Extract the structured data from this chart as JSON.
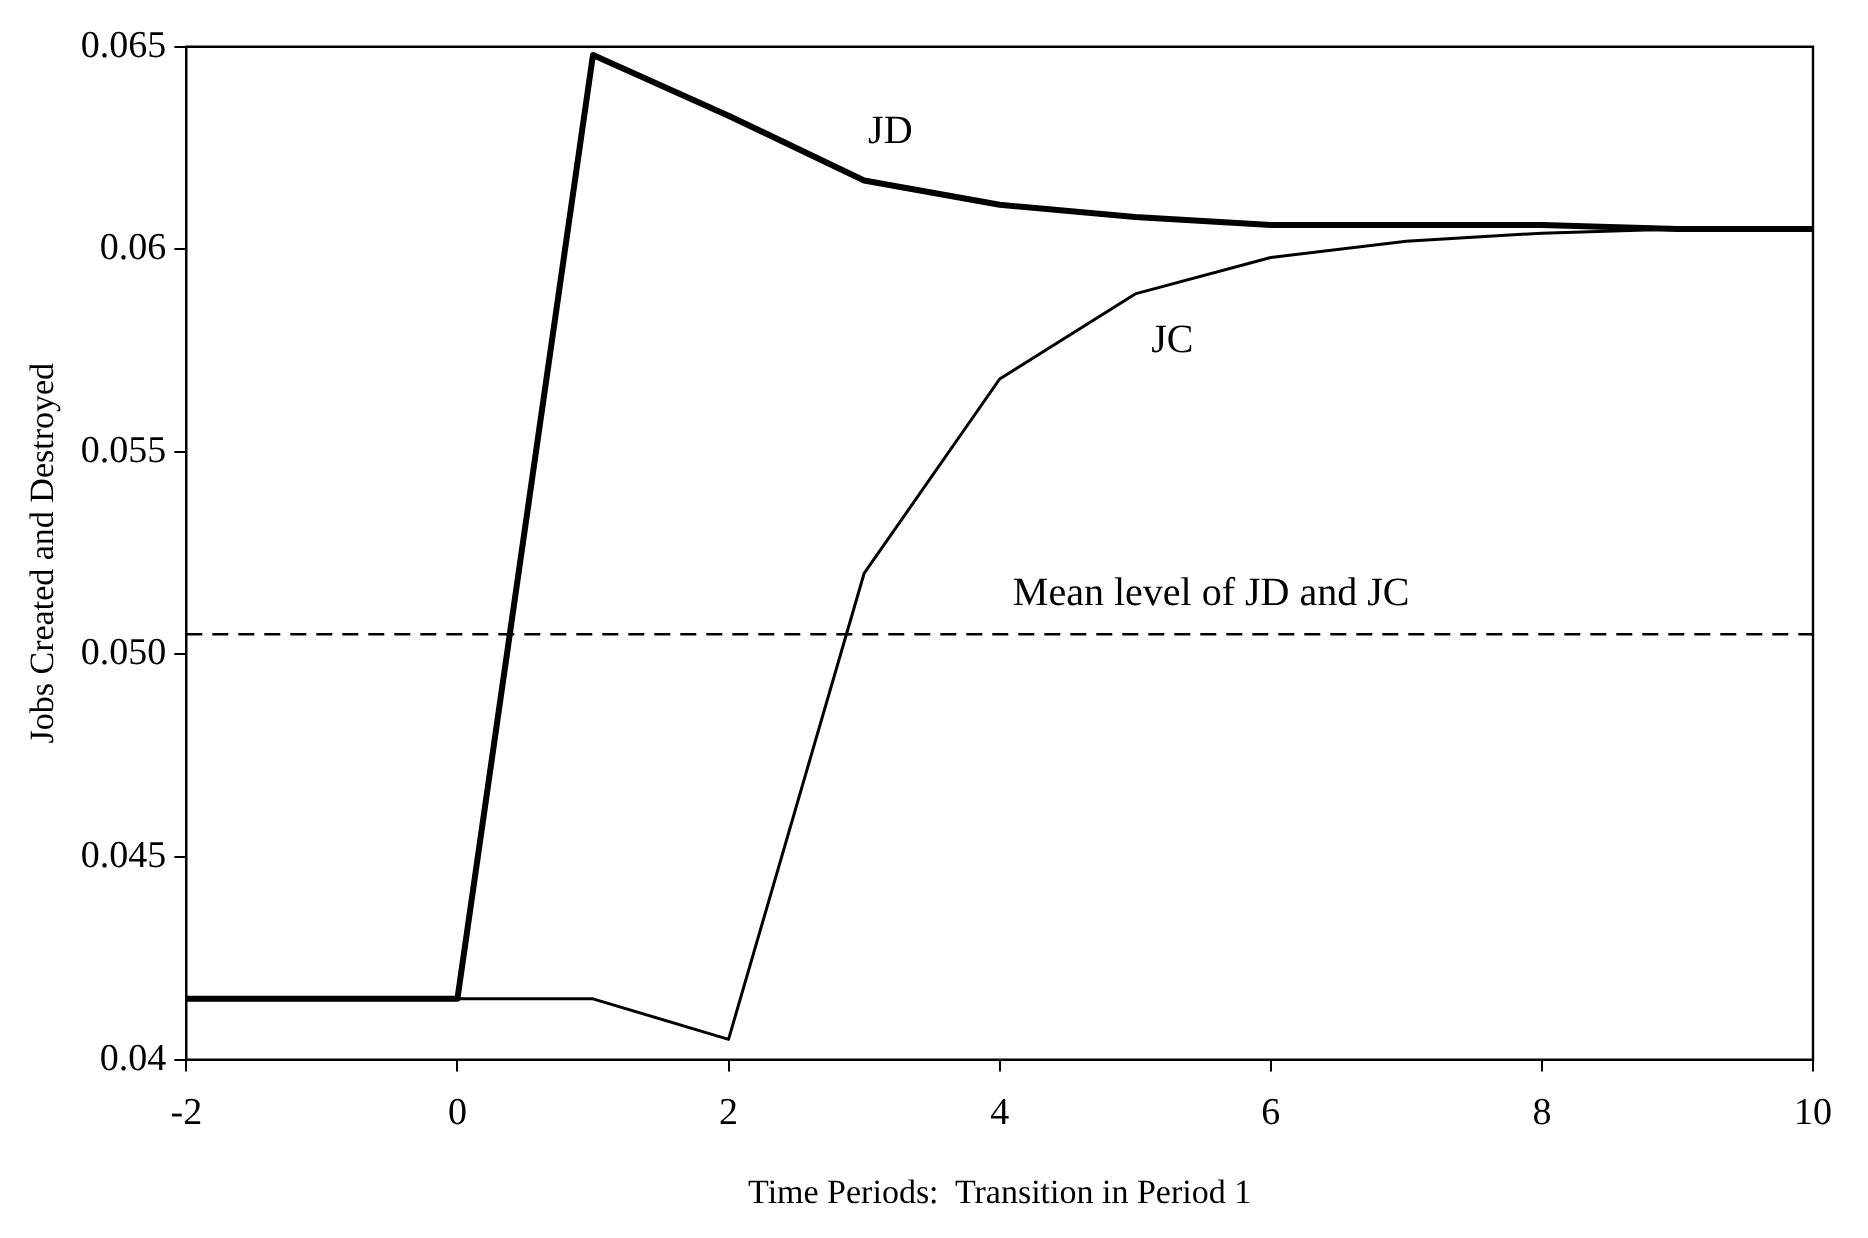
{
  "chart_data": {
    "type": "line",
    "xlabel": "Time Periods:  Transition in Period 1",
    "ylabel": "Jobs Created and Destroyed",
    "x": [
      -2,
      -1,
      0,
      1,
      2,
      3,
      4,
      5,
      6,
      7,
      8,
      9,
      10
    ],
    "series": [
      {
        "name": "JD",
        "color": "#000000",
        "values": [
          0.0415,
          0.0415,
          0.0415,
          0.0648,
          0.0633,
          0.0617,
          0.0611,
          0.0608,
          0.0606,
          0.0606,
          0.0606,
          0.0605,
          0.0605
        ]
      },
      {
        "name": "JC",
        "color": "#000000",
        "values": [
          0.0415,
          0.0415,
          0.0415,
          0.0415,
          0.0405,
          0.052,
          0.0568,
          0.0589,
          0.0598,
          0.0602,
          0.0604,
          0.0605,
          0.0605
        ]
      }
    ],
    "xlim": [
      -2,
      10
    ],
    "xticks": [
      -2,
      0,
      2,
      4,
      6,
      8,
      10
    ],
    "ylim": [
      0.04,
      0.065
    ],
    "yticks": [
      0.04,
      0.045,
      {
        "value": 0.05,
        "label": "0.050"
      },
      0.055,
      0.06,
      0.065
    ],
    "ref_lines": [
      {
        "axis": "y",
        "value": 0.0505,
        "label": "Mean level of JD and JC",
        "color": "#000000",
        "line_style": "dashed"
      }
    ],
    "grid": false,
    "legend": false,
    "marker": "none",
    "line_style": "solid"
  }
}
